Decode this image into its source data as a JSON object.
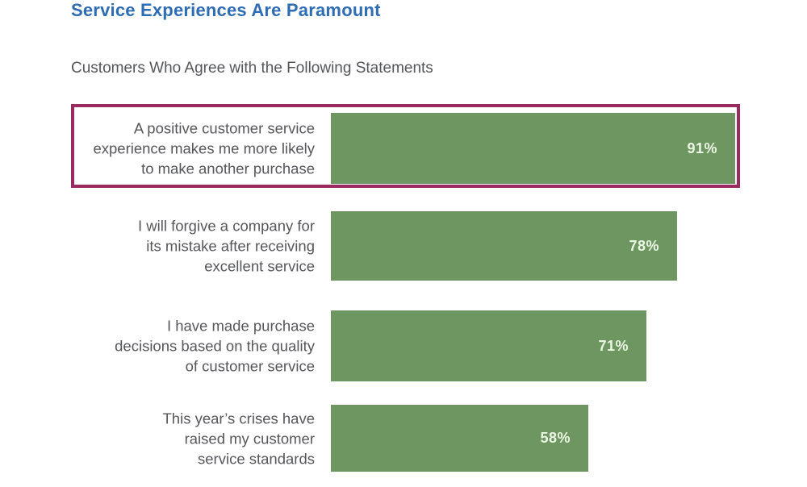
{
  "title": "Service Experiences Are Paramount",
  "subtitle": "Customers Who Agree with the Following Statements",
  "colors": {
    "title_blue": "#2e6db4",
    "subtitle_gray": "#54565a",
    "label_gray": "#56575b",
    "bar_green": "#6d9661",
    "highlight_border": "#9b2a60",
    "value_text": "#ecf6e5",
    "background": "#ffffff"
  },
  "chart_data": {
    "type": "bar",
    "orientation": "horizontal",
    "title": "Service Experiences Are Paramount",
    "subtitle": "Customers Who Agree with the Following Statements",
    "unit": "%",
    "xlim": [
      0,
      100
    ],
    "grid": false,
    "legend": false,
    "categories": [
      "A positive customer service experience makes me more likely to make another purchase",
      "I will forgive a company for its mistake after receiving excellent service",
      "I have made purchase decisions based on the quality of customer service",
      "This year’s crises have raised my customer service standards"
    ],
    "values": [
      91,
      78,
      71,
      58
    ],
    "value_labels": [
      "91%",
      "78%",
      "71%",
      "58%"
    ],
    "highlighted_index": 0
  },
  "rows": [
    {
      "lines": [
        "A positive customer service",
        "experience makes me more likely",
        "to make another purchase"
      ],
      "percent": 91,
      "value_label": "91%",
      "highlighted": true
    },
    {
      "lines": [
        "I will forgive a company for",
        "its mistake after receiving",
        "excellent service"
      ],
      "percent": 78,
      "value_label": "78%",
      "highlighted": false
    },
    {
      "lines": [
        "I have made purchase",
        "decisions based on the quality",
        "of customer service"
      ],
      "percent": 71,
      "value_label": "71%",
      "highlighted": false
    },
    {
      "lines": [
        "This year’s crises have",
        "raised my customer",
        "service standards"
      ],
      "percent": 58,
      "value_label": "58%",
      "highlighted": false
    }
  ]
}
